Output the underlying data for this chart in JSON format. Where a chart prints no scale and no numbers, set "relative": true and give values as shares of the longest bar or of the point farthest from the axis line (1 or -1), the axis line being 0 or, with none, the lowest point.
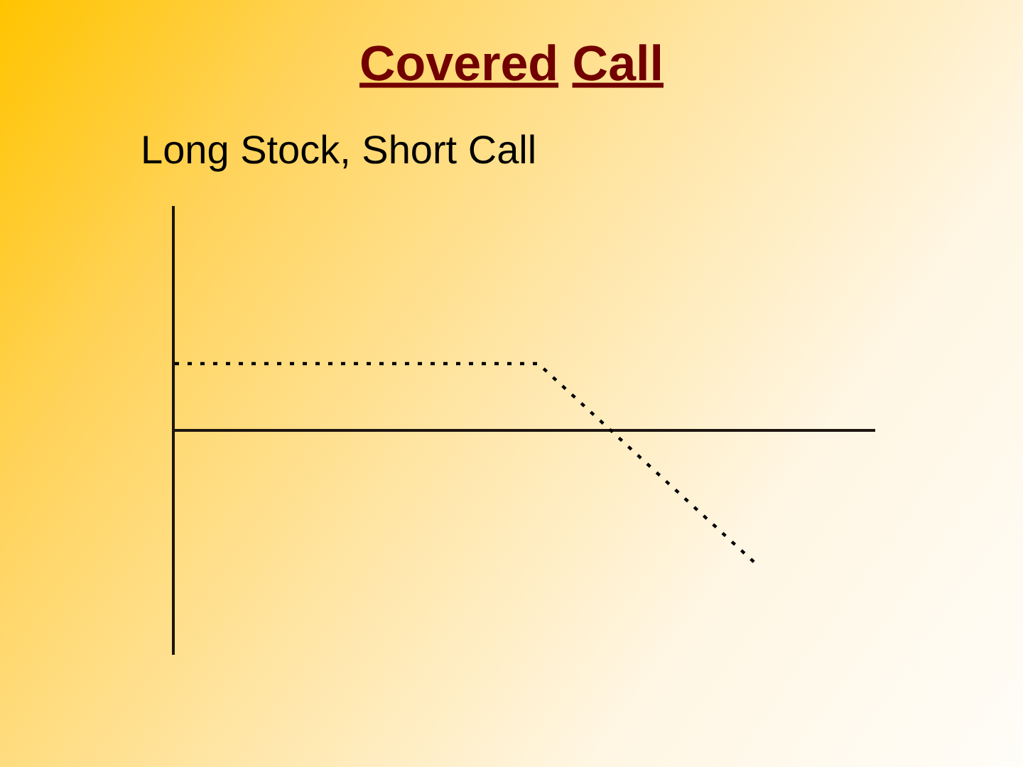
{
  "chart_data": {
    "type": "line",
    "title": "Covered Call",
    "subtitle": "Long Stock, Short Call",
    "categories": [
      null,
      null,
      null,
      null,
      null,
      null,
      null,
      null,
      null
    ],
    "relative": true,
    "values": [
      0.5,
      0.5,
      0.5,
      0.5,
      0.5,
      0.5,
      0,
      -0.5,
      -1
    ],
    "color": "#000000",
    "line_style": "dotted",
    "grid": false
  }
}
